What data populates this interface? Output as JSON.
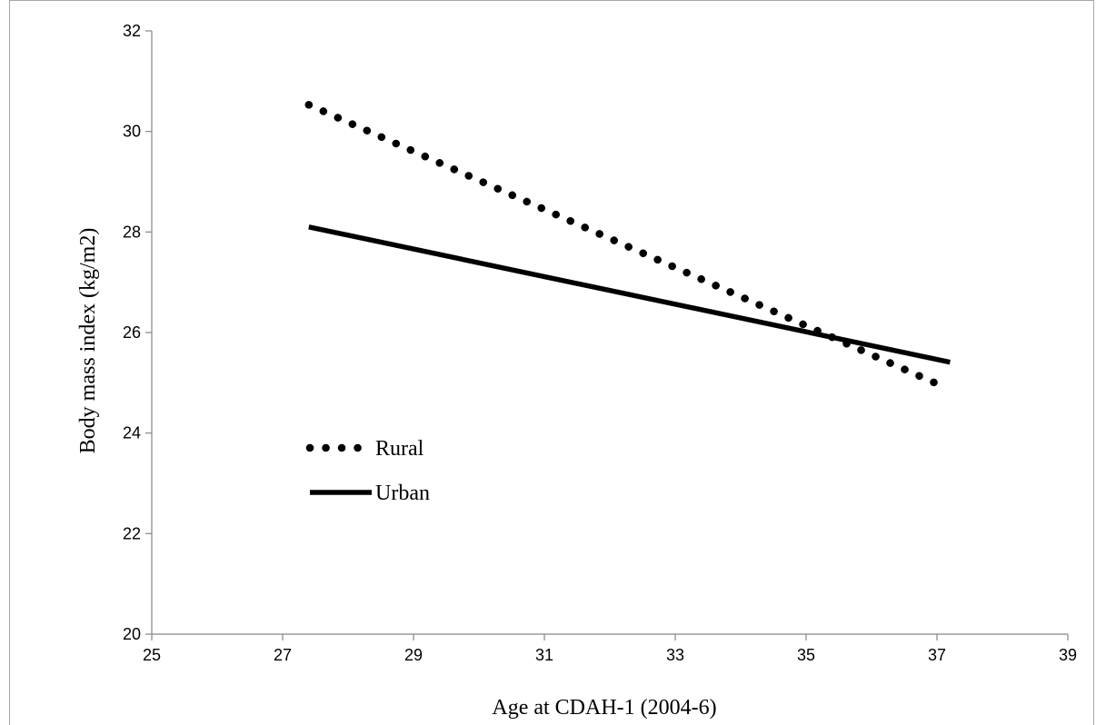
{
  "chart_data": {
    "type": "line",
    "xlabel": "Age at CDAH-1 (2004-6)",
    "ylabel": "Body mass index (kg/m2)",
    "xlim": [
      25,
      39
    ],
    "ylim": [
      20,
      32
    ],
    "xticks": [
      25,
      27,
      29,
      31,
      33,
      35,
      37,
      39
    ],
    "yticks": [
      20,
      22,
      24,
      26,
      28,
      30,
      32
    ],
    "grid": false,
    "legend_position": "left-center",
    "series": [
      {
        "name": "Rural",
        "style": "dotted",
        "color": "#000000",
        "x": [
          27.4,
          37.0
        ],
        "y": [
          30.53,
          24.98
        ]
      },
      {
        "name": "Urban",
        "style": "solid",
        "color": "#000000",
        "x": [
          27.4,
          37.2
        ],
        "y": [
          28.1,
          25.41
        ]
      }
    ]
  }
}
